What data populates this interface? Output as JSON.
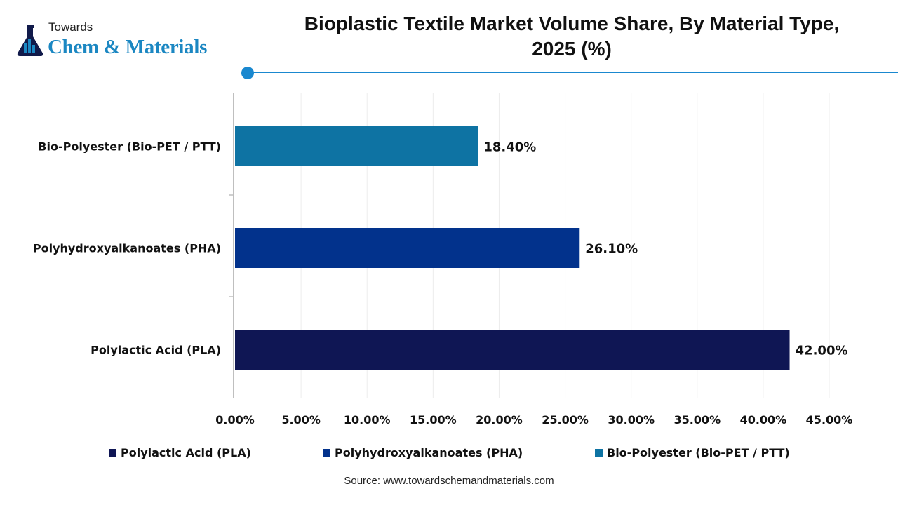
{
  "logo": {
    "line1": "Towards",
    "line2": "Chem & Materials"
  },
  "chart_data": {
    "type": "bar",
    "orientation": "horizontal",
    "title": "Bioplastic Textile Market Volume Share, By Material Type, 2025 (%)",
    "title_lines": [
      "Bioplastic Textile Market Volume Share, By Material Type,",
      "2025 (%)"
    ],
    "categories": [
      "Bio-Polyester (Bio-PET / PTT)",
      "Polyhydroxyalkanoates (PHA)",
      "Polylactic Acid (PLA)"
    ],
    "values": [
      18.4,
      26.1,
      42.0
    ],
    "data_labels": [
      "18.40%",
      "26.10%",
      "42.00%"
    ],
    "colors": [
      "#0e73a3",
      "#02328c",
      "#0f1654"
    ],
    "xlim": [
      0,
      45
    ],
    "x_ticks": [
      0,
      5,
      10,
      15,
      20,
      25,
      30,
      35,
      40,
      45
    ],
    "x_tick_labels": [
      "0.00%",
      "5.00%",
      "10.00%",
      "15.00%",
      "20.00%",
      "25.00%",
      "30.00%",
      "35.00%",
      "40.00%",
      "45.00%"
    ],
    "grid": true,
    "legend_position": "bottom",
    "legend": [
      {
        "label": "Polylactic Acid (PLA)",
        "color": "#0f1654"
      },
      {
        "label": "Polyhydroxyalkanoates (PHA)",
        "color": "#02328c"
      },
      {
        "label": "Bio-Polyester (Bio-PET / PTT)",
        "color": "#0e73a3"
      }
    ]
  },
  "source": "Source: www.towardschemandmaterials.com"
}
